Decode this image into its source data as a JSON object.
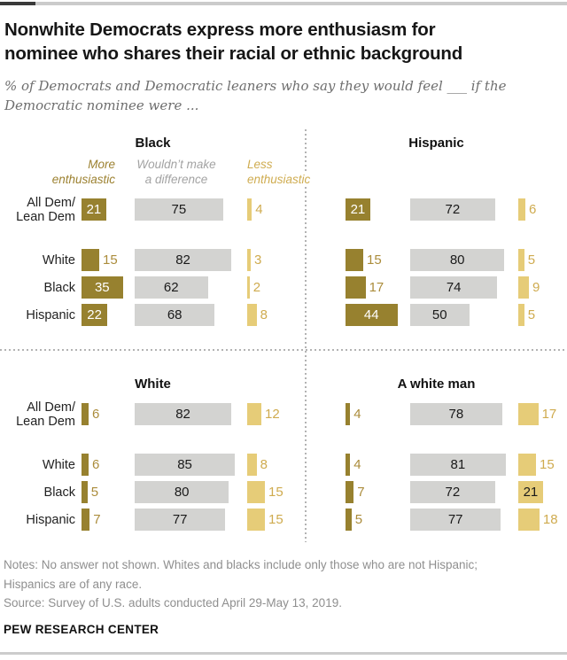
{
  "header": {
    "title_lines": [
      "Nonwhite Democrats express more enthusiasm for",
      "nominee who shares their racial or ethnic background"
    ],
    "subtitle_lines": [
      "% of Democrats and Democratic leaners who say they would feel ___ if the",
      "Democratic nominee were ..."
    ]
  },
  "legend": {
    "more": {
      "lines": [
        "More",
        "enthusiastic"
      ],
      "color": "#9c8130"
    },
    "neutral": {
      "lines": [
        "Wouldn’t make",
        "a difference"
      ],
      "color": "#a3a3a3"
    },
    "less": {
      "lines": [
        "Less",
        "enthusiastic"
      ],
      "color": "#cfac50"
    }
  },
  "row_labels": [
    [
      "All Dem/",
      "Lean Dem"
    ],
    [
      "White"
    ],
    [
      "Black"
    ],
    [
      "Hispanic"
    ]
  ],
  "chart_data": {
    "type": "bar",
    "orientation": "horizontal",
    "unit": "% of Democrats and Democratic leaners",
    "measures": [
      "More enthusiastic",
      "Wouldn’t make a difference",
      "Less enthusiastic"
    ],
    "categories": [
      "All Dem/Lean Dem",
      "White",
      "Black",
      "Hispanic"
    ],
    "panels": [
      {
        "title": "Black",
        "rows": [
          [
            21,
            75,
            4
          ],
          [
            15,
            82,
            3
          ],
          [
            35,
            62,
            2
          ],
          [
            22,
            68,
            8
          ]
        ]
      },
      {
        "title": "Hispanic",
        "rows": [
          [
            21,
            72,
            6
          ],
          [
            15,
            80,
            5
          ],
          [
            17,
            74,
            9
          ],
          [
            44,
            50,
            5
          ]
        ]
      },
      {
        "title": "White",
        "rows": [
          [
            6,
            82,
            12
          ],
          [
            6,
            85,
            8
          ],
          [
            5,
            80,
            15
          ],
          [
            7,
            77,
            15
          ]
        ]
      },
      {
        "title": "A white man",
        "rows": [
          [
            4,
            78,
            17
          ],
          [
            4,
            81,
            15
          ],
          [
            7,
            72,
            21
          ],
          [
            5,
            77,
            18
          ]
        ]
      }
    ],
    "colors": {
      "more": "#97812f",
      "neutral": "#d3d3d1",
      "less": "#e6cc78"
    },
    "xlim": [
      0,
      100
    ],
    "grid": false,
    "legend_position": "top-left-panel"
  },
  "footer": {
    "notes_lines": [
      "Notes: No answer not shown. Whites and blacks include only those who are not Hispanic;",
      "Hispanics are of any race."
    ],
    "source": "Source: Survey of U.S. adults conducted April 29-May 13, 2019.",
    "brand": "PEW RESEARCH CENTER"
  }
}
